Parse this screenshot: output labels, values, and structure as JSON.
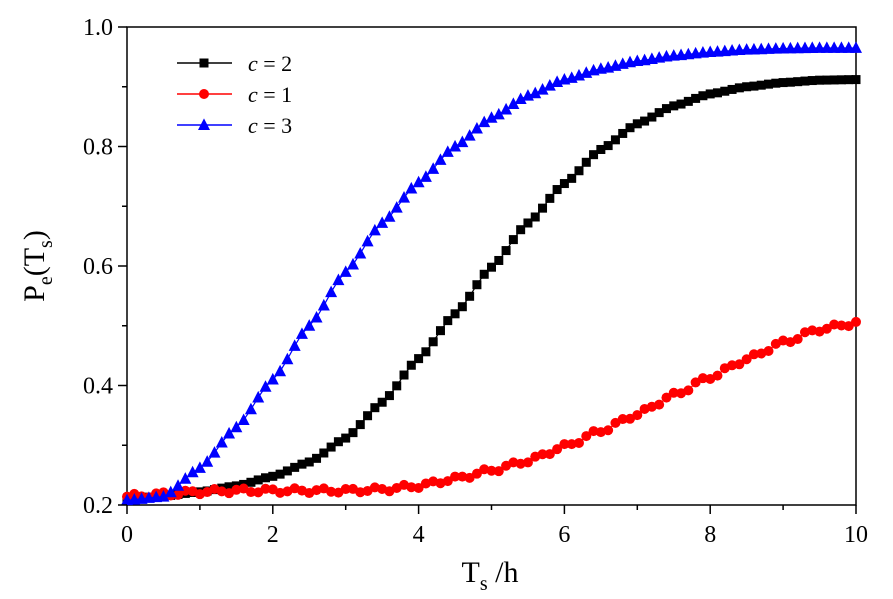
{
  "chart_data": {
    "type": "scatter",
    "xlabel": {
      "main": "T",
      "sub": "s",
      "rest": " /h"
    },
    "ylabel": {
      "main": "P",
      "sub": "e",
      "mid": "(T",
      "sub2": "s",
      "end": ")"
    },
    "xlim": [
      0,
      10
    ],
    "ylim": [
      0.2,
      1.0
    ],
    "xticks": [
      "0",
      "2",
      "4",
      "6",
      "8",
      "10"
    ],
    "yticks": [
      "0.2",
      "0.4",
      "0.6",
      "0.8",
      "1.0"
    ],
    "grid": false,
    "legend_position": "top-left",
    "series": [
      {
        "name": "c = 2",
        "legend_var": "c",
        "legend_rest": " = 2",
        "color": "#000000",
        "marker": "square",
        "curve": [
          [
            0,
            0.21
          ],
          [
            0.5,
            0.215
          ],
          [
            1,
            0.222
          ],
          [
            1.5,
            0.232
          ],
          [
            2,
            0.248
          ],
          [
            2.5,
            0.272
          ],
          [
            3,
            0.312
          ],
          [
            3.5,
            0.372
          ],
          [
            4,
            0.445
          ],
          [
            4.5,
            0.52
          ],
          [
            5,
            0.598
          ],
          [
            5.5,
            0.672
          ],
          [
            6,
            0.738
          ],
          [
            6.5,
            0.795
          ],
          [
            7,
            0.838
          ],
          [
            7.5,
            0.868
          ],
          [
            8,
            0.888
          ],
          [
            8.5,
            0.9
          ],
          [
            9,
            0.907
          ],
          [
            9.5,
            0.911
          ],
          [
            10,
            0.912
          ]
        ]
      },
      {
        "name": "c = 1",
        "legend_var": "c",
        "legend_rest": " = 1",
        "color": "#ff0000",
        "marker": "circle",
        "curve": [
          [
            0,
            0.214
          ],
          [
            0.5,
            0.218
          ],
          [
            1,
            0.222
          ],
          [
            1.5,
            0.224
          ],
          [
            2,
            0.224
          ],
          [
            2.5,
            0.224
          ],
          [
            3,
            0.224
          ],
          [
            3.5,
            0.226
          ],
          [
            4,
            0.232
          ],
          [
            4.5,
            0.244
          ],
          [
            5,
            0.258
          ],
          [
            5.5,
            0.274
          ],
          [
            6,
            0.298
          ],
          [
            6.5,
            0.324
          ],
          [
            7,
            0.352
          ],
          [
            7.5,
            0.384
          ],
          [
            8,
            0.414
          ],
          [
            8.5,
            0.444
          ],
          [
            9,
            0.472
          ],
          [
            9.5,
            0.494
          ],
          [
            10,
            0.505
          ]
        ]
      },
      {
        "name": "c = 3",
        "legend_var": "c",
        "legend_rest": " = 3",
        "color": "#0000ff",
        "marker": "triangle",
        "curve": [
          [
            0,
            0.208
          ],
          [
            0.5,
            0.214
          ],
          [
            1,
            0.262
          ],
          [
            1.5,
            0.33
          ],
          [
            2,
            0.41
          ],
          [
            2.5,
            0.5
          ],
          [
            3,
            0.59
          ],
          [
            3.5,
            0.672
          ],
          [
            4,
            0.74
          ],
          [
            4.5,
            0.8
          ],
          [
            5,
            0.848
          ],
          [
            5.5,
            0.885
          ],
          [
            6,
            0.912
          ],
          [
            6.5,
            0.93
          ],
          [
            7,
            0.943
          ],
          [
            7.5,
            0.952
          ],
          [
            8,
            0.958
          ],
          [
            8.5,
            0.962
          ],
          [
            9,
            0.964
          ],
          [
            9.5,
            0.965
          ],
          [
            10,
            0.965
          ]
        ]
      }
    ]
  }
}
